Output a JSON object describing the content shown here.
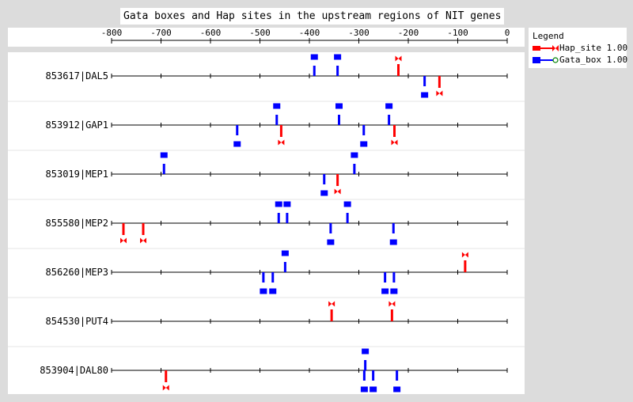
{
  "title": "Gata boxes and Hap sites in the upstream regions of NIT genes",
  "axis": {
    "ticks": [
      -800,
      -700,
      -600,
      -500,
      -400,
      -300,
      -200,
      -100,
      0
    ]
  },
  "legend": {
    "title": "Legend",
    "items": [
      {
        "label": "Hap_site 1.00",
        "color": "#ff0000",
        "shape": "bowtie"
      },
      {
        "label": "Gata_box 1.00",
        "color": "#0000ff",
        "shape": "box"
      }
    ]
  },
  "colors": {
    "hap": "#ff0000",
    "gata": "#0000ff",
    "background": "#dcdcdc"
  },
  "genes": [
    {
      "label": "853617|DAL5",
      "features": [
        {
          "type": "gata",
          "pos": -390,
          "strand": "+"
        },
        {
          "type": "gata",
          "pos": -343,
          "strand": "+"
        },
        {
          "type": "hap",
          "pos": -220,
          "strand": "+"
        },
        {
          "type": "gata",
          "pos": -167,
          "strand": "-"
        },
        {
          "type": "hap",
          "pos": -137,
          "strand": "-"
        }
      ]
    },
    {
      "label": "853912|GAP1",
      "features": [
        {
          "type": "gata",
          "pos": -546,
          "strand": "-"
        },
        {
          "type": "gata",
          "pos": -466,
          "strand": "+"
        },
        {
          "type": "hap",
          "pos": -457,
          "strand": "-"
        },
        {
          "type": "gata",
          "pos": -340,
          "strand": "+"
        },
        {
          "type": "gata",
          "pos": -290,
          "strand": "-"
        },
        {
          "type": "gata",
          "pos": -239,
          "strand": "+"
        },
        {
          "type": "hap",
          "pos": -228,
          "strand": "-"
        }
      ]
    },
    {
      "label": "853019|MEP1",
      "features": [
        {
          "type": "gata",
          "pos": -694,
          "strand": "+"
        },
        {
          "type": "gata",
          "pos": -370,
          "strand": "-"
        },
        {
          "type": "hap",
          "pos": -343,
          "strand": "-"
        },
        {
          "type": "gata",
          "pos": -309,
          "strand": "+"
        }
      ]
    },
    {
      "label": "855580|MEP2",
      "features": [
        {
          "type": "hap",
          "pos": -776,
          "strand": "-"
        },
        {
          "type": "hap",
          "pos": -736,
          "strand": "-"
        },
        {
          "type": "gata",
          "pos": -462,
          "strand": "+"
        },
        {
          "type": "gata",
          "pos": -445,
          "strand": "+"
        },
        {
          "type": "gata",
          "pos": -357,
          "strand": "-"
        },
        {
          "type": "gata",
          "pos": -323,
          "strand": "+"
        },
        {
          "type": "gata",
          "pos": -230,
          "strand": "-"
        }
      ]
    },
    {
      "label": "856260|MEP3",
      "features": [
        {
          "type": "gata",
          "pos": -493,
          "strand": "-"
        },
        {
          "type": "gata",
          "pos": -474,
          "strand": "-"
        },
        {
          "type": "gata",
          "pos": -449,
          "strand": "+"
        },
        {
          "type": "gata",
          "pos": -247,
          "strand": "-"
        },
        {
          "type": "gata",
          "pos": -229,
          "strand": "-"
        },
        {
          "type": "hap",
          "pos": -85,
          "strand": "+"
        }
      ]
    },
    {
      "label": "854530|PUT4",
      "features": [
        {
          "type": "hap",
          "pos": -355,
          "strand": "+"
        },
        {
          "type": "hap",
          "pos": -233,
          "strand": "+"
        }
      ]
    },
    {
      "label": "853904|DAL80",
      "features": [
        {
          "type": "hap",
          "pos": -690,
          "strand": "-"
        },
        {
          "type": "gata",
          "pos": -287,
          "strand": "+"
        },
        {
          "type": "gata",
          "pos": -289,
          "strand": "-"
        },
        {
          "type": "gata",
          "pos": -271,
          "strand": "-"
        },
        {
          "type": "gata",
          "pos": -223,
          "strand": "-"
        }
      ]
    }
  ]
}
